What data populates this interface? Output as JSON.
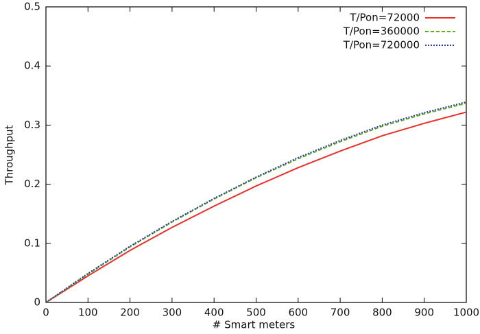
{
  "chart_data": {
    "type": "line",
    "xlabel": "# Smart meters",
    "ylabel": "Throughput",
    "x": [
      0,
      100,
      200,
      300,
      400,
      500,
      600,
      700,
      800,
      900,
      1000
    ],
    "series": [
      {
        "name": "T/Pon=72000",
        "color": "#e8302a",
        "dash": "solid",
        "values": [
          0,
          0.045,
          0.088,
          0.127,
          0.163,
          0.197,
          0.228,
          0.256,
          0.282,
          0.303,
          0.322
        ]
      },
      {
        "name": "T/Pon=360000",
        "color": "#5aab1e",
        "dash": "dashed",
        "values": [
          0,
          0.048,
          0.094,
          0.136,
          0.175,
          0.211,
          0.243,
          0.272,
          0.298,
          0.319,
          0.337
        ]
      },
      {
        "name": "T/Pon=720000",
        "color": "#2b3a9e",
        "dash": "dotted",
        "values": [
          0,
          0.049,
          0.095,
          0.137,
          0.176,
          0.212,
          0.245,
          0.274,
          0.3,
          0.321,
          0.339
        ]
      }
    ],
    "xlim": [
      0,
      1000
    ],
    "xticks": [
      0,
      100,
      200,
      300,
      400,
      500,
      600,
      700,
      800,
      900,
      1000
    ],
    "ylim": [
      0,
      0.5
    ],
    "yticks": [
      0,
      0.1,
      0.2,
      0.3,
      0.4,
      0.5
    ],
    "grid": false,
    "legend": "upper right"
  }
}
